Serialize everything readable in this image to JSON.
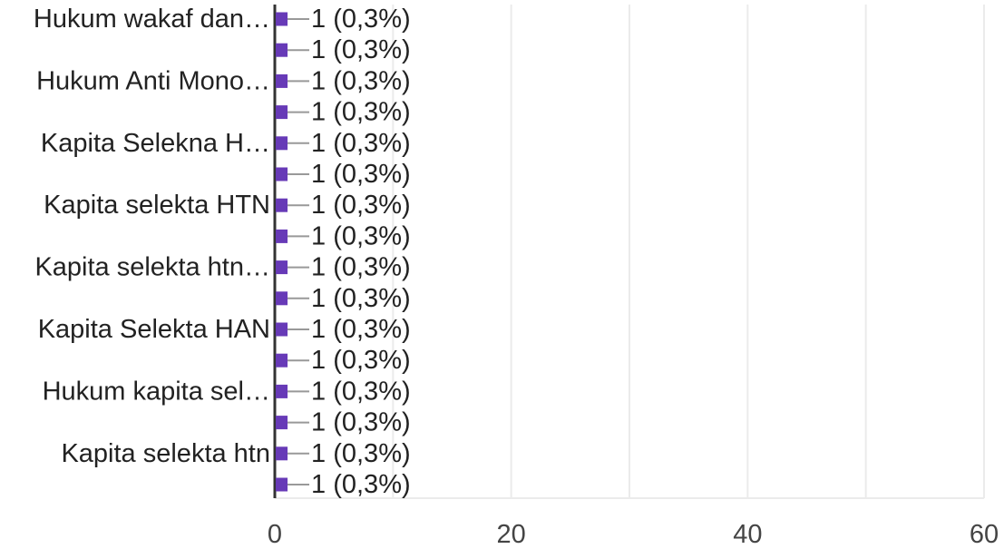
{
  "chart_data": {
    "type": "bar",
    "orientation": "horizontal",
    "categories": [
      "Hukum wakaf dan…",
      "",
      "Hukum Anti Mono…",
      "",
      "Kapita Selekna H…",
      "",
      "Kapita selekta HTN",
      "",
      "Kapita selekta htn…",
      "",
      "Kapita Selekta HAN",
      "",
      "Hukum kapita sel…",
      "",
      "Kapita selekta htn",
      ""
    ],
    "values": [
      1,
      1,
      1,
      1,
      1,
      1,
      1,
      1,
      1,
      1,
      1,
      1,
      1,
      1,
      1,
      1
    ],
    "data_labels": [
      "1 (0,3%)",
      "1 (0,3%)",
      "1 (0,3%)",
      "1 (0,3%)",
      "1 (0,3%)",
      "1 (0,3%)",
      "1 (0,3%)",
      "1 (0,3%)",
      "1 (0,3%)",
      "1 (0,3%)",
      "1 (0,3%)",
      "1 (0,3%)",
      "1 (0,3%)",
      "1 (0,3%)",
      "1 (0,3%)",
      "1 (0,3%)"
    ],
    "xlim": [
      0,
      60
    ],
    "x_ticks": [
      0,
      20,
      40,
      60
    ],
    "x_tick_labels": [
      "0",
      "20",
      "40",
      "60"
    ],
    "grid": true,
    "bar_color": "#673ab7",
    "grid_color": "#ebebeb",
    "axis_color": "#333333",
    "leader_line_color": "#999999",
    "title": "",
    "xlabel": "",
    "ylabel": ""
  }
}
